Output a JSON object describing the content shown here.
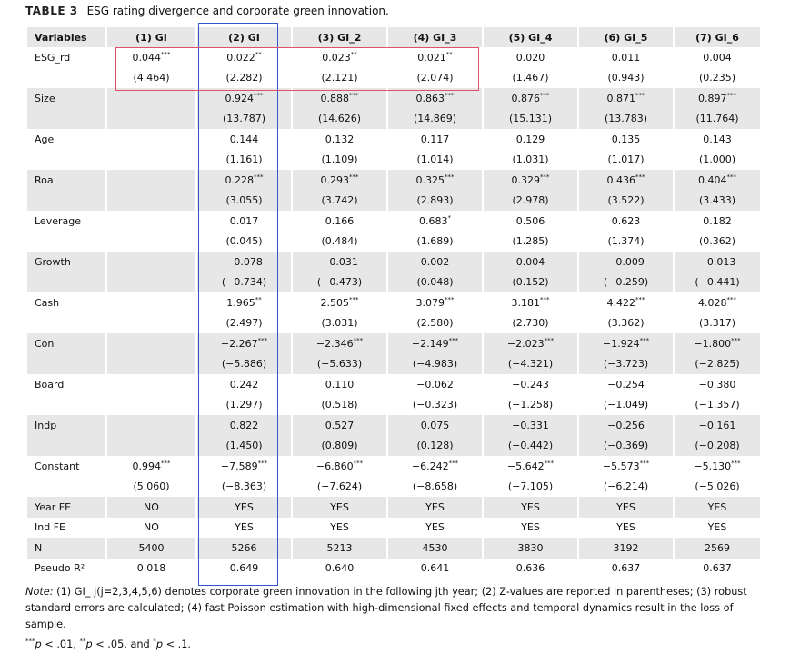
{
  "table": {
    "label": "TABLE 3",
    "caption": "ESG rating divergence and corporate green innovation.",
    "columns": [
      "Variables",
      "(1) GI",
      "(2) GI",
      "(3) GI_2",
      "(4) GI_3",
      "(5) GI_4",
      "(6) GI_5",
      "(7) GI_6"
    ],
    "rows": [
      {
        "name": "ESG_rd",
        "coef": [
          [
            "0.044",
            "***"
          ],
          [
            "0.022",
            "**"
          ],
          [
            "0.023",
            "**"
          ],
          [
            "0.021",
            "**"
          ],
          [
            "0.020"
          ],
          [
            "0.011"
          ],
          [
            "0.004"
          ]
        ],
        "z": [
          "(4.464)",
          "(2.282)",
          "(2.121)",
          "(2.074)",
          "(1.467)",
          "(0.943)",
          "(0.235)"
        ]
      },
      {
        "name": "Size",
        "coef": [
          null,
          [
            "0.924",
            "***"
          ],
          [
            "0.888",
            "***"
          ],
          [
            "0.863",
            "***"
          ],
          [
            "0.876",
            "***"
          ],
          [
            "0.871",
            "***"
          ],
          [
            "0.897",
            "***"
          ]
        ],
        "z": [
          null,
          "(13.787)",
          "(14.626)",
          "(14.869)",
          "(15.131)",
          "(13.783)",
          "(11.764)"
        ]
      },
      {
        "name": "Age",
        "coef": [
          null,
          [
            "0.144"
          ],
          [
            "0.132"
          ],
          [
            "0.117"
          ],
          [
            "0.129"
          ],
          [
            "0.135"
          ],
          [
            "0.143"
          ]
        ],
        "z": [
          null,
          "(1.161)",
          "(1.109)",
          "(1.014)",
          "(1.031)",
          "(1.017)",
          "(1.000)"
        ]
      },
      {
        "name": "Roa",
        "coef": [
          null,
          [
            "0.228",
            "***"
          ],
          [
            "0.293",
            "***"
          ],
          [
            "0.325",
            "***"
          ],
          [
            "0.329",
            "***"
          ],
          [
            "0.436",
            "***"
          ],
          [
            "0.404",
            "***"
          ]
        ],
        "z": [
          null,
          "(3.055)",
          "(3.742)",
          "(2.893)",
          "(2.978)",
          "(3.522)",
          "(3.433)"
        ]
      },
      {
        "name": "Leverage",
        "coef": [
          null,
          [
            "0.017"
          ],
          [
            "0.166"
          ],
          [
            "0.683",
            "*"
          ],
          [
            "0.506"
          ],
          [
            "0.623"
          ],
          [
            "0.182"
          ]
        ],
        "z": [
          null,
          "(0.045)",
          "(0.484)",
          "(1.689)",
          "(1.285)",
          "(1.374)",
          "(0.362)"
        ]
      },
      {
        "name": "Growth",
        "coef": [
          null,
          [
            "−0.078"
          ],
          [
            "−0.031"
          ],
          [
            "0.002"
          ],
          [
            "0.004"
          ],
          [
            "−0.009"
          ],
          [
            "−0.013"
          ]
        ],
        "z": [
          null,
          "(−0.734)",
          "(−0.473)",
          "(0.048)",
          "(0.152)",
          "(−0.259)",
          "(−0.441)"
        ]
      },
      {
        "name": "Cash",
        "coef": [
          null,
          [
            "1.965",
            "**"
          ],
          [
            "2.505",
            "***"
          ],
          [
            "3.079",
            "***"
          ],
          [
            "3.181",
            "***"
          ],
          [
            "4.422",
            "***"
          ],
          [
            "4.028",
            "***"
          ]
        ],
        "z": [
          null,
          "(2.497)",
          "(3.031)",
          "(2.580)",
          "(2.730)",
          "(3.362)",
          "(3.317)"
        ]
      },
      {
        "name": "Con",
        "coef": [
          null,
          [
            "−2.267",
            "***"
          ],
          [
            "−2.346",
            "***"
          ],
          [
            "−2.149",
            "***"
          ],
          [
            "−2.023",
            "***"
          ],
          [
            "−1.924",
            "***"
          ],
          [
            "−1.800",
            "***"
          ]
        ],
        "z": [
          null,
          "(−5.886)",
          "(−5.633)",
          "(−4.983)",
          "(−4.321)",
          "(−3.723)",
          "(−2.825)"
        ]
      },
      {
        "name": "Board",
        "coef": [
          null,
          [
            "0.242"
          ],
          [
            "0.110"
          ],
          [
            "−0.062"
          ],
          [
            "−0.243"
          ],
          [
            "−0.254"
          ],
          [
            "−0.380"
          ]
        ],
        "z": [
          null,
          "(1.297)",
          "(0.518)",
          "(−0.323)",
          "(−1.258)",
          "(−1.049)",
          "(−1.357)"
        ]
      },
      {
        "name": "Indp",
        "coef": [
          null,
          [
            "0.822"
          ],
          [
            "0.527"
          ],
          [
            "0.075"
          ],
          [
            "−0.331"
          ],
          [
            "−0.256"
          ],
          [
            "−0.161"
          ]
        ],
        "z": [
          null,
          "(1.450)",
          "(0.809)",
          "(0.128)",
          "(−0.442)",
          "(−0.369)",
          "(−0.208)"
        ]
      },
      {
        "name": "Constant",
        "coef": [
          [
            "0.994",
            "***"
          ],
          [
            "−7.589",
            "***"
          ],
          [
            "−6.860",
            "***"
          ],
          [
            "−6.242",
            "***"
          ],
          [
            "−5.642",
            "***"
          ],
          [
            "−5.573",
            "***"
          ],
          [
            "−5.130",
            "***"
          ]
        ],
        "z": [
          "(5.060)",
          "(−8.363)",
          "(−7.624)",
          "(−8.658)",
          "(−7.105)",
          "(−6.214)",
          "(−5.026)"
        ]
      }
    ],
    "bottom": [
      {
        "name": "Year FE",
        "cells": [
          "NO",
          "YES",
          "YES",
          "YES",
          "YES",
          "YES",
          "YES"
        ]
      },
      {
        "name": "Ind FE",
        "cells": [
          "NO",
          "YES",
          "YES",
          "YES",
          "YES",
          "YES",
          "YES"
        ]
      },
      {
        "name": "N",
        "cells": [
          "5400",
          "5266",
          "5213",
          "4530",
          "3830",
          "3192",
          "2569"
        ]
      },
      {
        "name": "Pseudo R²",
        "cells": [
          "0.018",
          "0.649",
          "0.640",
          "0.641",
          "0.636",
          "0.637",
          "0.637"
        ]
      }
    ]
  },
  "note": {
    "label": "Note:",
    "text": "(1) GI_ j(j=2,3,4,5,6) denotes corporate green innovation in the following jth year; (2) Z-values are reported in parentheses; (3) robust standard errors are calculated; (4) fast Poisson estimation with high-dimensional fixed effects and temporal dynamics result in the loss of sample.",
    "significance": [
      [
        "***",
        "p",
        "< .01, "
      ],
      [
        "**",
        "p",
        "< .05, and "
      ],
      [
        "*",
        "p",
        "< .1."
      ]
    ]
  }
}
